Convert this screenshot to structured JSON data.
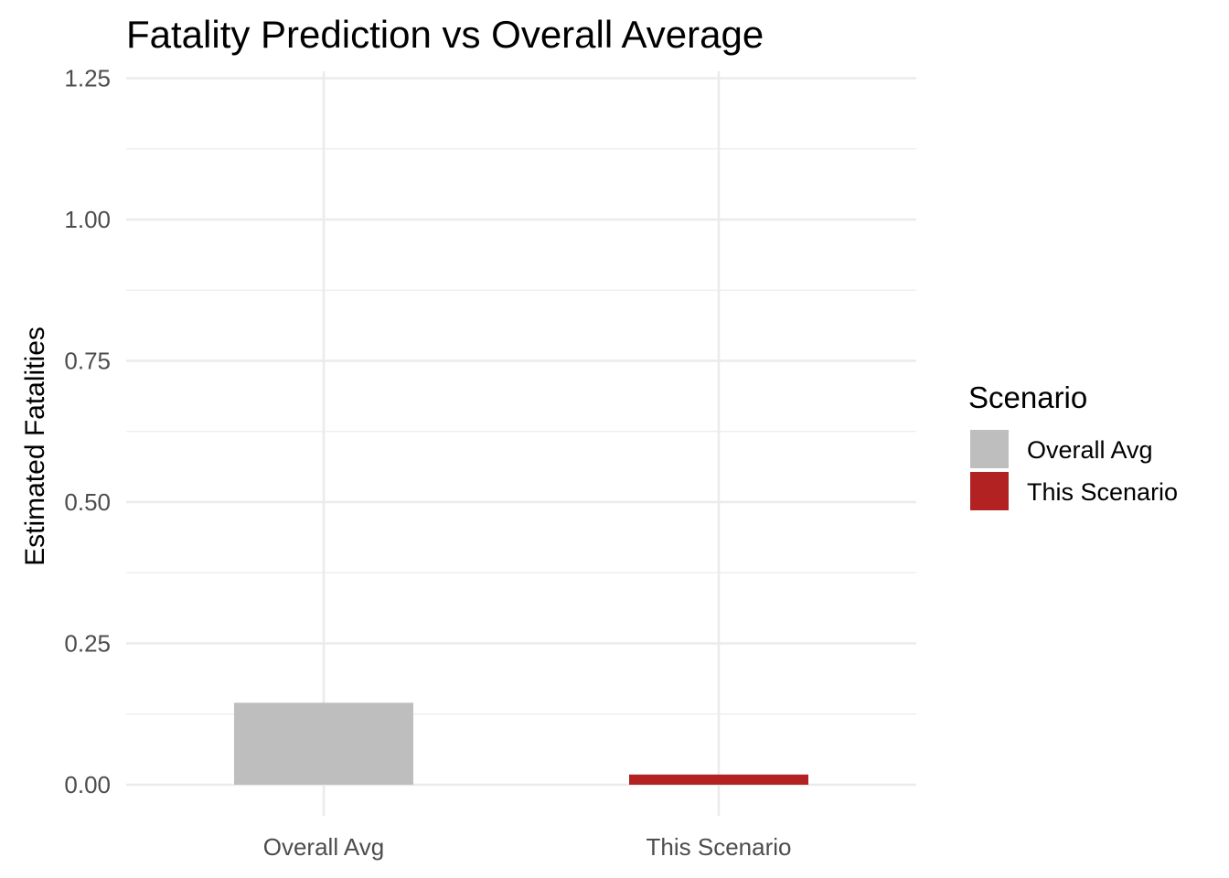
{
  "chart_data": {
    "type": "bar",
    "title": "Fatality Prediction vs Overall Average",
    "xlabel": "",
    "ylabel": "Estimated Fatalities",
    "categories": [
      "Overall Avg",
      "This Scenario"
    ],
    "values": [
      0.145,
      0.018
    ],
    "colors": [
      "#bebebe",
      "#b22222"
    ],
    "ylim": [
      0,
      1.25
    ],
    "yticks": [
      "0.00",
      "0.25",
      "0.50",
      "0.75",
      "1.00",
      "1.25"
    ],
    "ytick_values": [
      0,
      0.25,
      0.5,
      0.75,
      1.0,
      1.25
    ],
    "grid": true,
    "legend": {
      "title": "Scenario",
      "position": "right",
      "items": [
        {
          "label": "Overall Avg",
          "color": "#bebebe"
        },
        {
          "label": "This Scenario",
          "color": "#b22222"
        }
      ]
    }
  }
}
